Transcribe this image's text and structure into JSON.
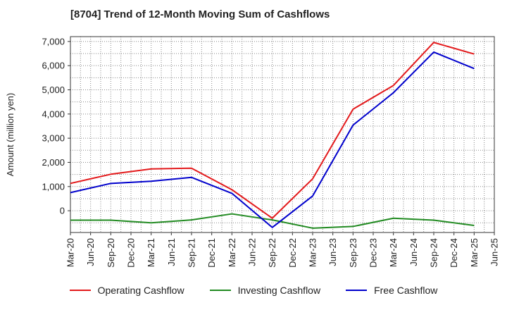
{
  "chart_data": {
    "type": "line",
    "title": "[8704]  Trend of 12-Month Moving Sum of Cashflows",
    "xlabel": "",
    "ylabel": "Amount (million yen)",
    "categories": [
      "Mar-20",
      "Jun-20",
      "Sep-20",
      "Dec-20",
      "Mar-21",
      "Jun-21",
      "Sep-21",
      "Dec-21",
      "Mar-22",
      "Jun-22",
      "Sep-22",
      "Dec-22",
      "Mar-23",
      "Jun-23",
      "Sep-23",
      "Dec-23",
      "Mar-24",
      "Jun-24",
      "Sep-24",
      "Dec-24",
      "Mar-25",
      "Jun-25"
    ],
    "ylim": [
      -900,
      7200
    ],
    "yticks": [
      0,
      1000,
      2000,
      3000,
      4000,
      5000,
      6000,
      7000
    ],
    "ytick_labels": [
      "0",
      "1,000",
      "2,000",
      "3,000",
      "4,000",
      "5,000",
      "6,000",
      "7,000"
    ],
    "grid": true,
    "legend_position": "bottom",
    "series": [
      {
        "name": "Operating Cashflow",
        "color": "#e31a1c",
        "x": [
          "Mar-20",
          "Sep-20",
          "Mar-21",
          "Sep-21",
          "Mar-22",
          "Sep-22",
          "Mar-23",
          "Sep-23",
          "Mar-24",
          "Sep-24",
          "Mar-25"
        ],
        "values": [
          1130,
          1510,
          1730,
          1760,
          870,
          -310,
          1320,
          4200,
          5180,
          6960,
          6480
        ]
      },
      {
        "name": "Investing Cashflow",
        "color": "#228b22",
        "x": [
          "Mar-20",
          "Sep-20",
          "Mar-21",
          "Sep-21",
          "Mar-22",
          "Sep-22",
          "Mar-23",
          "Sep-23",
          "Mar-24",
          "Sep-24",
          "Mar-25"
        ],
        "values": [
          -390,
          -390,
          -500,
          -380,
          -130,
          -380,
          -720,
          -650,
          -310,
          -390,
          -610
        ]
      },
      {
        "name": "Free Cashflow",
        "color": "#0000cc",
        "x": [
          "Mar-20",
          "Sep-20",
          "Mar-21",
          "Sep-21",
          "Mar-22",
          "Sep-22",
          "Mar-23",
          "Sep-23",
          "Mar-24",
          "Sep-24",
          "Mar-25"
        ],
        "values": [
          750,
          1130,
          1220,
          1380,
          720,
          -690,
          610,
          3540,
          4880,
          6560,
          5880
        ]
      }
    ]
  }
}
